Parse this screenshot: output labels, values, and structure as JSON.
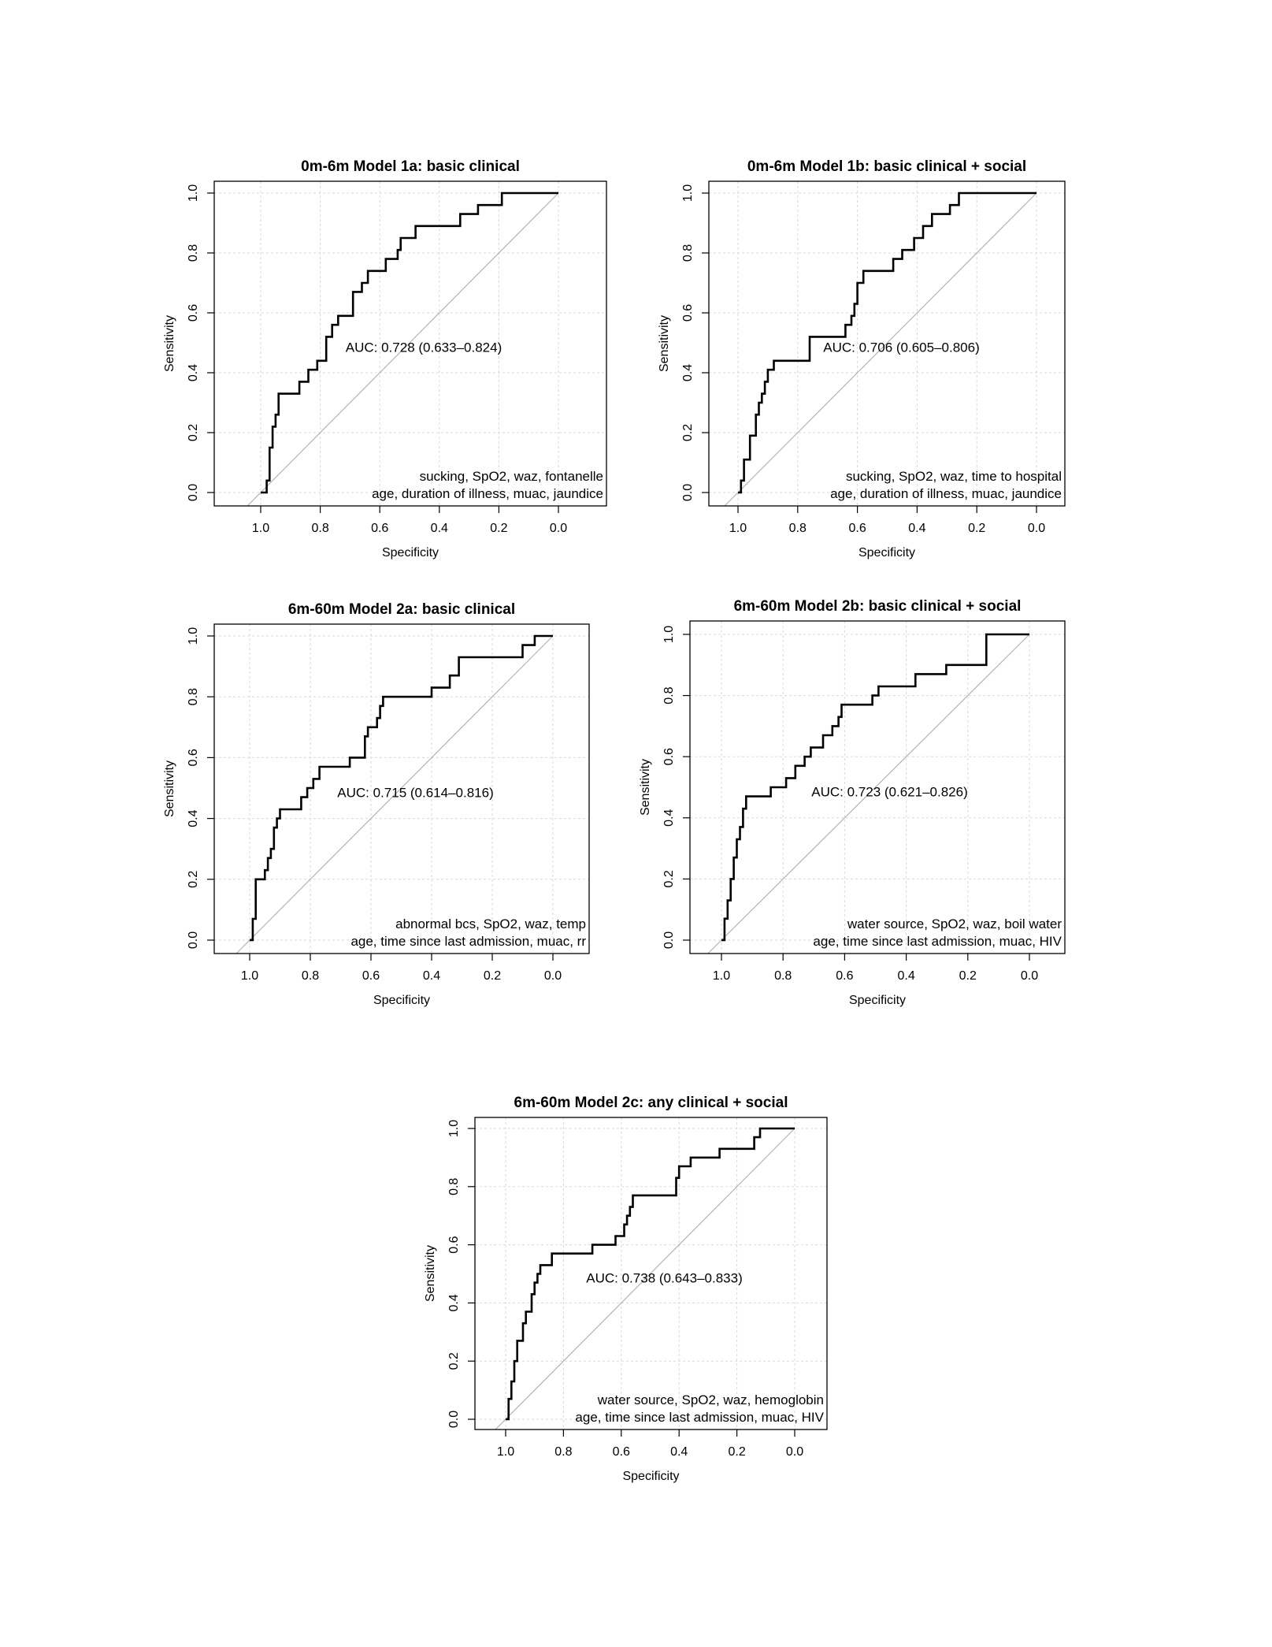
{
  "axis_labels": {
    "x": "Specificity",
    "y": "Sensitivity"
  },
  "tick_labels": {
    "x": [
      "1.0",
      "0.8",
      "0.6",
      "0.4",
      "0.2",
      "0.0"
    ],
    "y": [
      "0.0",
      "0.2",
      "0.4",
      "0.6",
      "0.8",
      "1.0"
    ]
  },
  "colors": {
    "roc": "#000000",
    "diagonal": "#b3b3b3",
    "grid": "#d9d9d9"
  },
  "chart_data": [
    {
      "type": "line",
      "title": "0m-6m Model 1a: basic clinical",
      "xlabel": "Specificity",
      "ylabel": "Sensitivity",
      "xlim": [
        1.0,
        0.0
      ],
      "ylim": [
        0.0,
        1.0
      ],
      "x_reversed": true,
      "grid": true,
      "auc_text": "AUC: 0.728 (0.633–0.824)",
      "variables": [
        "sucking, SpO2, waz, fontanelle",
        "age, duration of illness, muac, jaundice"
      ],
      "series": [
        {
          "x": [
            1.0,
            0.98,
            0.98,
            0.97,
            0.97,
            0.96,
            0.96,
            0.95,
            0.95,
            0.94,
            0.94,
            0.87,
            0.87,
            0.84,
            0.84,
            0.81,
            0.81,
            0.78,
            0.78,
            0.76,
            0.76,
            0.74,
            0.74,
            0.69,
            0.69,
            0.66,
            0.66,
            0.64,
            0.64,
            0.58,
            0.58,
            0.54,
            0.54,
            0.53,
            0.53,
            0.48,
            0.48,
            0.33,
            0.33,
            0.27,
            0.27,
            0.19,
            0.19,
            0.0
          ],
          "y": [
            0.0,
            0.0,
            0.04,
            0.04,
            0.15,
            0.15,
            0.22,
            0.22,
            0.26,
            0.26,
            0.33,
            0.33,
            0.37,
            0.37,
            0.41,
            0.41,
            0.44,
            0.44,
            0.52,
            0.52,
            0.56,
            0.56,
            0.59,
            0.59,
            0.67,
            0.67,
            0.7,
            0.7,
            0.74,
            0.74,
            0.78,
            0.78,
            0.81,
            0.81,
            0.85,
            0.85,
            0.89,
            0.89,
            0.93,
            0.93,
            0.96,
            0.96,
            1.0,
            1.0
          ]
        }
      ]
    },
    {
      "type": "line",
      "title": "0m-6m Model 1b: basic clinical + social",
      "xlabel": "Specificity",
      "ylabel": "Sensitivity",
      "xlim": [
        1.0,
        0.0
      ],
      "ylim": [
        0.0,
        1.0
      ],
      "x_reversed": true,
      "grid": true,
      "auc_text": "AUC: 0.706 (0.605–0.806)",
      "variables": [
        "sucking, SpO2, waz, time to hospital",
        "age, duration of illness, muac, jaundice"
      ],
      "series": [
        {
          "x": [
            1.0,
            0.99,
            0.99,
            0.98,
            0.98,
            0.96,
            0.96,
            0.94,
            0.94,
            0.93,
            0.93,
            0.92,
            0.92,
            0.91,
            0.91,
            0.9,
            0.9,
            0.88,
            0.88,
            0.76,
            0.76,
            0.64,
            0.64,
            0.62,
            0.62,
            0.61,
            0.61,
            0.6,
            0.6,
            0.58,
            0.58,
            0.48,
            0.48,
            0.45,
            0.45,
            0.41,
            0.41,
            0.38,
            0.38,
            0.35,
            0.35,
            0.29,
            0.29,
            0.26,
            0.26,
            0.23,
            0.23,
            0.0
          ],
          "y": [
            0.0,
            0.0,
            0.04,
            0.04,
            0.11,
            0.11,
            0.19,
            0.19,
            0.26,
            0.26,
            0.3,
            0.3,
            0.33,
            0.33,
            0.37,
            0.37,
            0.41,
            0.41,
            0.44,
            0.44,
            0.52,
            0.52,
            0.56,
            0.56,
            0.59,
            0.59,
            0.63,
            0.63,
            0.7,
            0.7,
            0.74,
            0.74,
            0.78,
            0.78,
            0.81,
            0.81,
            0.85,
            0.85,
            0.89,
            0.89,
            0.93,
            0.93,
            0.96,
            0.96,
            1.0,
            1.0,
            1.0,
            1.0
          ]
        }
      ]
    },
    {
      "type": "line",
      "title": "6m-60m Model 2a: basic clinical",
      "xlabel": "Specificity",
      "ylabel": "Sensitivity",
      "xlim": [
        1.0,
        0.0
      ],
      "ylim": [
        0.0,
        1.0
      ],
      "x_reversed": true,
      "grid": true,
      "auc_text": "AUC: 0.715 (0.614–0.816)",
      "variables": [
        "abnormal bcs, SpO2, waz, temp",
        "age, time since last admission, muac, rr"
      ],
      "series": [
        {
          "x": [
            1.0,
            0.99,
            0.99,
            0.98,
            0.98,
            0.95,
            0.95,
            0.94,
            0.94,
            0.93,
            0.93,
            0.92,
            0.92,
            0.91,
            0.91,
            0.9,
            0.9,
            0.83,
            0.83,
            0.81,
            0.81,
            0.79,
            0.79,
            0.77,
            0.77,
            0.67,
            0.67,
            0.62,
            0.62,
            0.61,
            0.61,
            0.58,
            0.58,
            0.57,
            0.57,
            0.56,
            0.56,
            0.4,
            0.4,
            0.34,
            0.34,
            0.31,
            0.31,
            0.1,
            0.1,
            0.06,
            0.06,
            0.0
          ],
          "y": [
            0.0,
            0.0,
            0.07,
            0.07,
            0.2,
            0.2,
            0.23,
            0.23,
            0.27,
            0.27,
            0.3,
            0.3,
            0.37,
            0.37,
            0.4,
            0.4,
            0.43,
            0.43,
            0.47,
            0.47,
            0.5,
            0.5,
            0.53,
            0.53,
            0.57,
            0.57,
            0.6,
            0.6,
            0.67,
            0.67,
            0.7,
            0.7,
            0.73,
            0.73,
            0.77,
            0.77,
            0.8,
            0.8,
            0.83,
            0.83,
            0.87,
            0.87,
            0.93,
            0.93,
            0.97,
            0.97,
            1.0,
            1.0
          ]
        }
      ]
    },
    {
      "type": "line",
      "title": "6m-60m Model 2b: basic clinical + social",
      "xlabel": "Specificity",
      "ylabel": "Sensitivity",
      "xlim": [
        1.0,
        0.0
      ],
      "ylim": [
        0.0,
        1.0
      ],
      "x_reversed": true,
      "grid": true,
      "auc_text": "AUC: 0.723 (0.621–0.826)",
      "variables": [
        "water source, SpO2, waz, boil water",
        "age, time since last admission, muac, HIV"
      ],
      "series": [
        {
          "x": [
            1.0,
            0.99,
            0.99,
            0.98,
            0.98,
            0.97,
            0.97,
            0.96,
            0.96,
            0.95,
            0.95,
            0.94,
            0.94,
            0.93,
            0.93,
            0.92,
            0.92,
            0.84,
            0.84,
            0.79,
            0.79,
            0.76,
            0.76,
            0.73,
            0.73,
            0.71,
            0.71,
            0.67,
            0.67,
            0.64,
            0.64,
            0.62,
            0.62,
            0.61,
            0.61,
            0.59,
            0.59,
            0.51,
            0.51,
            0.49,
            0.49,
            0.37,
            0.37,
            0.27,
            0.27,
            0.14,
            0.14,
            0.0
          ],
          "y": [
            0.0,
            0.0,
            0.07,
            0.07,
            0.13,
            0.13,
            0.2,
            0.2,
            0.27,
            0.27,
            0.33,
            0.33,
            0.37,
            0.37,
            0.43,
            0.43,
            0.47,
            0.47,
            0.5,
            0.5,
            0.53,
            0.53,
            0.57,
            0.57,
            0.6,
            0.6,
            0.63,
            0.63,
            0.67,
            0.67,
            0.7,
            0.7,
            0.73,
            0.73,
            0.77,
            0.77,
            0.77,
            0.77,
            0.8,
            0.8,
            0.83,
            0.83,
            0.87,
            0.87,
            0.9,
            0.9,
            1.0,
            1.0
          ]
        }
      ]
    },
    {
      "type": "line",
      "title": "6m-60m Model 2c: any clinical + social",
      "xlabel": "Specificity",
      "ylabel": "Sensitivity",
      "xlim": [
        1.0,
        0.0
      ],
      "ylim": [
        0.0,
        1.0
      ],
      "x_reversed": true,
      "grid": true,
      "auc_text": "AUC: 0.738 (0.643–0.833)",
      "variables": [
        "water source, SpO2, waz, hemoglobin",
        "age, time since last admission, muac, HIV"
      ],
      "series": [
        {
          "x": [
            1.0,
            0.99,
            0.99,
            0.98,
            0.98,
            0.97,
            0.97,
            0.96,
            0.96,
            0.94,
            0.94,
            0.93,
            0.93,
            0.91,
            0.91,
            0.9,
            0.9,
            0.89,
            0.89,
            0.88,
            0.88,
            0.84,
            0.84,
            0.7,
            0.7,
            0.62,
            0.62,
            0.59,
            0.59,
            0.58,
            0.58,
            0.57,
            0.57,
            0.56,
            0.56,
            0.41,
            0.41,
            0.4,
            0.4,
            0.36,
            0.36,
            0.26,
            0.26,
            0.14,
            0.14,
            0.12,
            0.12,
            0.0
          ],
          "y": [
            0.0,
            0.0,
            0.07,
            0.07,
            0.13,
            0.13,
            0.2,
            0.2,
            0.27,
            0.27,
            0.33,
            0.33,
            0.37,
            0.37,
            0.43,
            0.43,
            0.47,
            0.47,
            0.5,
            0.5,
            0.53,
            0.53,
            0.57,
            0.57,
            0.6,
            0.6,
            0.63,
            0.63,
            0.67,
            0.67,
            0.7,
            0.7,
            0.73,
            0.73,
            0.77,
            0.77,
            0.83,
            0.83,
            0.87,
            0.87,
            0.9,
            0.9,
            0.93,
            0.93,
            0.97,
            0.97,
            1.0,
            1.0
          ]
        }
      ]
    }
  ]
}
